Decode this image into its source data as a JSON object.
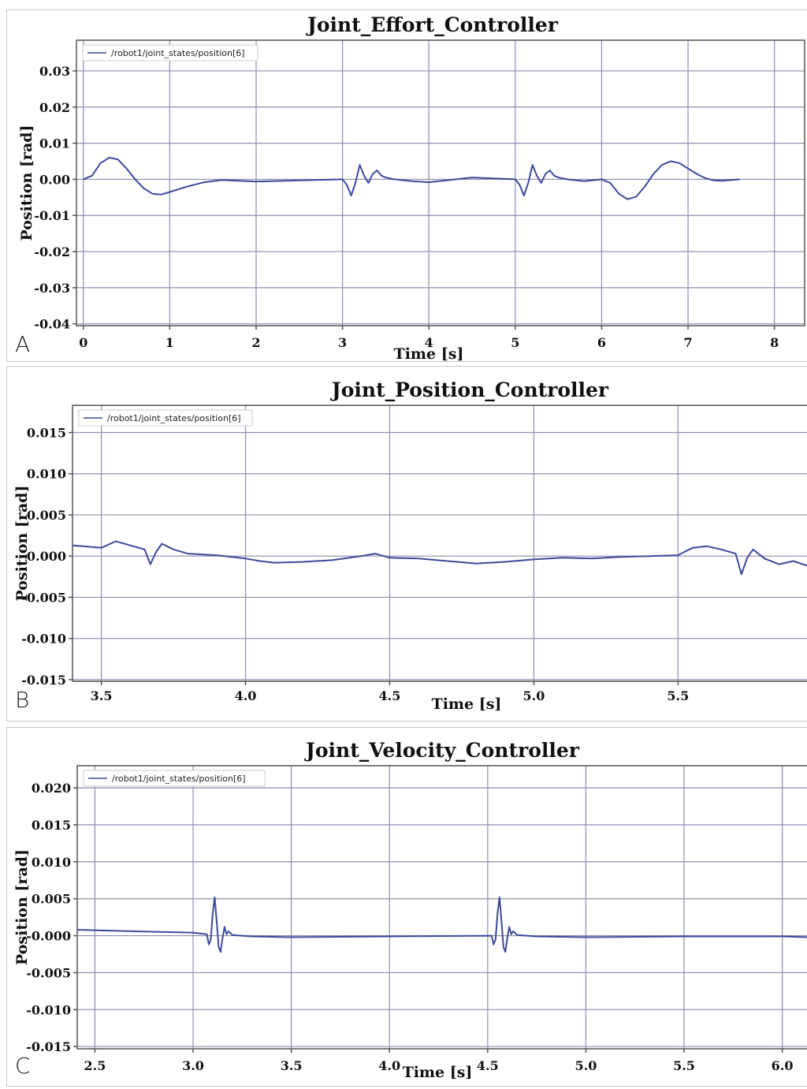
{
  "colors": {
    "line": "#3d4a9a",
    "grid": "#8c8fae",
    "frame": "#555555"
  },
  "panels": [
    {
      "letter": "A"
    },
    {
      "letter": "B"
    },
    {
      "letter": "C"
    }
  ],
  "chart_data": [
    {
      "type": "line",
      "title": "Joint_Effort_Controller",
      "xlabel": "Time [s]",
      "ylabel": "Position [rad]",
      "xlim": [
        -0.08,
        8.35
      ],
      "ylim": [
        -0.0405,
        0.0385
      ],
      "xticks": [
        0,
        1,
        2,
        3,
        4,
        5,
        6,
        7,
        8
      ],
      "xtick_labels": [
        "0",
        "1",
        "2",
        "3",
        "4",
        "5",
        "6",
        "7",
        "8"
      ],
      "yticks": [
        0.03,
        0.02,
        0.01,
        0.0,
        -0.01,
        -0.02,
        -0.03,
        -0.04
      ],
      "ytick_labels": [
        "0.03",
        "0.02",
        "0.01",
        "0.00",
        "-0.01",
        "-0.02",
        "-0.03",
        "-0.04"
      ],
      "grid": true,
      "legend_position": "top-left",
      "series": [
        {
          "name": "/robot1/joint_states/position[6]",
          "x": [
            0,
            0.1,
            0.2,
            0.3,
            0.4,
            0.5,
            0.6,
            0.7,
            0.8,
            0.9,
            1.0,
            1.2,
            1.4,
            1.6,
            1.8,
            2.0,
            2.5,
            3.0,
            3.05,
            3.1,
            3.15,
            3.2,
            3.25,
            3.3,
            3.35,
            3.4,
            3.45,
            3.5,
            3.6,
            3.8,
            4.0,
            4.2,
            4.5,
            4.8,
            5.0,
            5.05,
            5.1,
            5.15,
            5.2,
            5.25,
            5.3,
            5.35,
            5.4,
            5.45,
            5.5,
            5.6,
            5.8,
            6.0,
            6.1,
            6.2,
            6.3,
            6.4,
            6.5,
            6.6,
            6.7,
            6.8,
            6.9,
            7.0,
            7.1,
            7.2,
            7.3,
            7.4,
            7.5,
            7.6
          ],
          "y": [
            0,
            0.001,
            0.0045,
            0.006,
            0.0055,
            0.003,
            0.0,
            -0.0025,
            -0.004,
            -0.0042,
            -0.0035,
            -0.002,
            -0.0008,
            -0.0002,
            -0.0004,
            -0.0006,
            -0.0003,
            0.0,
            -0.0015,
            -0.0045,
            -0.001,
            0.004,
            0.001,
            -0.001,
            0.0015,
            0.0025,
            0.001,
            0.0005,
            0.0,
            -0.0005,
            -0.0008,
            -0.0003,
            0.0005,
            0.0002,
            0.0,
            -0.0015,
            -0.0045,
            -0.001,
            0.004,
            0.001,
            -0.001,
            0.0015,
            0.0025,
            0.001,
            0.0005,
            0.0,
            -0.0005,
            0.0,
            -0.001,
            -0.004,
            -0.0055,
            -0.0048,
            -0.002,
            0.0015,
            0.004,
            0.005,
            0.0045,
            0.003,
            0.0015,
            0.0003,
            -0.0003,
            -0.0004,
            -0.0002,
            0.0
          ]
        }
      ]
    },
    {
      "type": "line",
      "title": "Joint_Position_Controller",
      "xlabel": "Time [s]",
      "ylabel": "Position [rad]",
      "xlim": [
        3.4,
        5.95
      ],
      "ylim": [
        -0.0152,
        0.0183
      ],
      "xticks": [
        3.5,
        4.0,
        4.5,
        5.0,
        5.5
      ],
      "xtick_labels": [
        "3.5",
        "4.0",
        "4.5",
        "5.0",
        "5.5"
      ],
      "yticks": [
        0.015,
        0.01,
        0.005,
        0.0,
        -0.005,
        -0.01,
        -0.015
      ],
      "ytick_labels": [
        "0.015",
        "0.010",
        "0.005",
        "0.000",
        "-0.005",
        "-0.010",
        "-0.015"
      ],
      "grid": true,
      "legend_position": "top-left",
      "series": [
        {
          "name": "/robot1/joint_states/position[6]",
          "x": [
            3.4,
            3.5,
            3.55,
            3.6,
            3.65,
            3.67,
            3.69,
            3.71,
            3.75,
            3.8,
            3.9,
            4.0,
            4.05,
            4.1,
            4.2,
            4.3,
            4.4,
            4.45,
            4.5,
            4.6,
            4.7,
            4.8,
            4.9,
            5.0,
            5.1,
            5.2,
            5.3,
            5.4,
            5.5,
            5.55,
            5.6,
            5.65,
            5.7,
            5.72,
            5.74,
            5.76,
            5.8,
            5.85,
            5.9,
            5.95
          ],
          "y": [
            0.0013,
            0.001,
            0.0018,
            0.0013,
            0.0008,
            -0.001,
            0.0005,
            0.0015,
            0.0008,
            0.0003,
            0.0001,
            -0.0003,
            -0.0006,
            -0.0008,
            -0.0007,
            -0.0005,
            0.0,
            0.0003,
            -0.0002,
            -0.0003,
            -0.0006,
            -0.0009,
            -0.0007,
            -0.0004,
            -0.0002,
            -0.0003,
            -0.0001,
            0.0,
            0.0001,
            0.001,
            0.0012,
            0.0008,
            0.0003,
            -0.0022,
            -0.0002,
            0.0008,
            -0.0003,
            -0.001,
            -0.0006,
            -0.0012
          ]
        }
      ]
    },
    {
      "type": "line",
      "title": "Joint_Velocity_Controller",
      "xlabel": "Time [s]",
      "ylabel": "Position [rad]",
      "xlim": [
        2.41,
        6.13
      ],
      "ylim": [
        -0.0153,
        0.023
      ],
      "xticks": [
        2.5,
        3.0,
        3.5,
        4.0,
        4.5,
        5.0,
        5.5,
        6.0
      ],
      "xtick_labels": [
        "2.5",
        "3.0",
        "3.5",
        "4.0",
        "4.5",
        "5.0",
        "5.5",
        "6.0"
      ],
      "yticks": [
        0.02,
        0.015,
        0.01,
        0.005,
        0.0,
        -0.005,
        -0.01,
        -0.015
      ],
      "ytick_labels": [
        "0.020",
        "0.015",
        "0.010",
        "0.005",
        "-0.000",
        "-0.005",
        "-0.010",
        "-0.015"
      ],
      "grid": true,
      "legend_position": "top-left",
      "series": [
        {
          "name": "/robot1/joint_states/position[6]",
          "x": [
            2.41,
            2.7,
            3.0,
            3.07,
            3.08,
            3.09,
            3.1,
            3.11,
            3.12,
            3.13,
            3.14,
            3.15,
            3.16,
            3.17,
            3.18,
            3.2,
            3.3,
            3.5,
            4.0,
            4.52,
            4.53,
            4.54,
            4.55,
            4.56,
            4.57,
            4.58,
            4.59,
            4.6,
            4.61,
            4.62,
            4.63,
            4.65,
            4.75,
            5.0,
            5.5,
            6.0,
            6.13
          ],
          "y": [
            0.0008,
            0.0006,
            0.0004,
            0.0002,
            -0.0012,
            -0.0005,
            0.003,
            0.0052,
            0.002,
            -0.0015,
            -0.0022,
            -0.0003,
            0.0012,
            0.0002,
            0.0006,
            0.0001,
            -0.0001,
            -0.0002,
            -0.0001,
            0.0,
            -0.0012,
            -0.0005,
            0.003,
            0.0052,
            0.002,
            -0.0015,
            -0.0022,
            -0.0003,
            0.0012,
            0.0002,
            0.0006,
            0.0001,
            -0.0001,
            -0.0002,
            -0.0001,
            -0.0001,
            -0.0002
          ]
        }
      ]
    }
  ]
}
